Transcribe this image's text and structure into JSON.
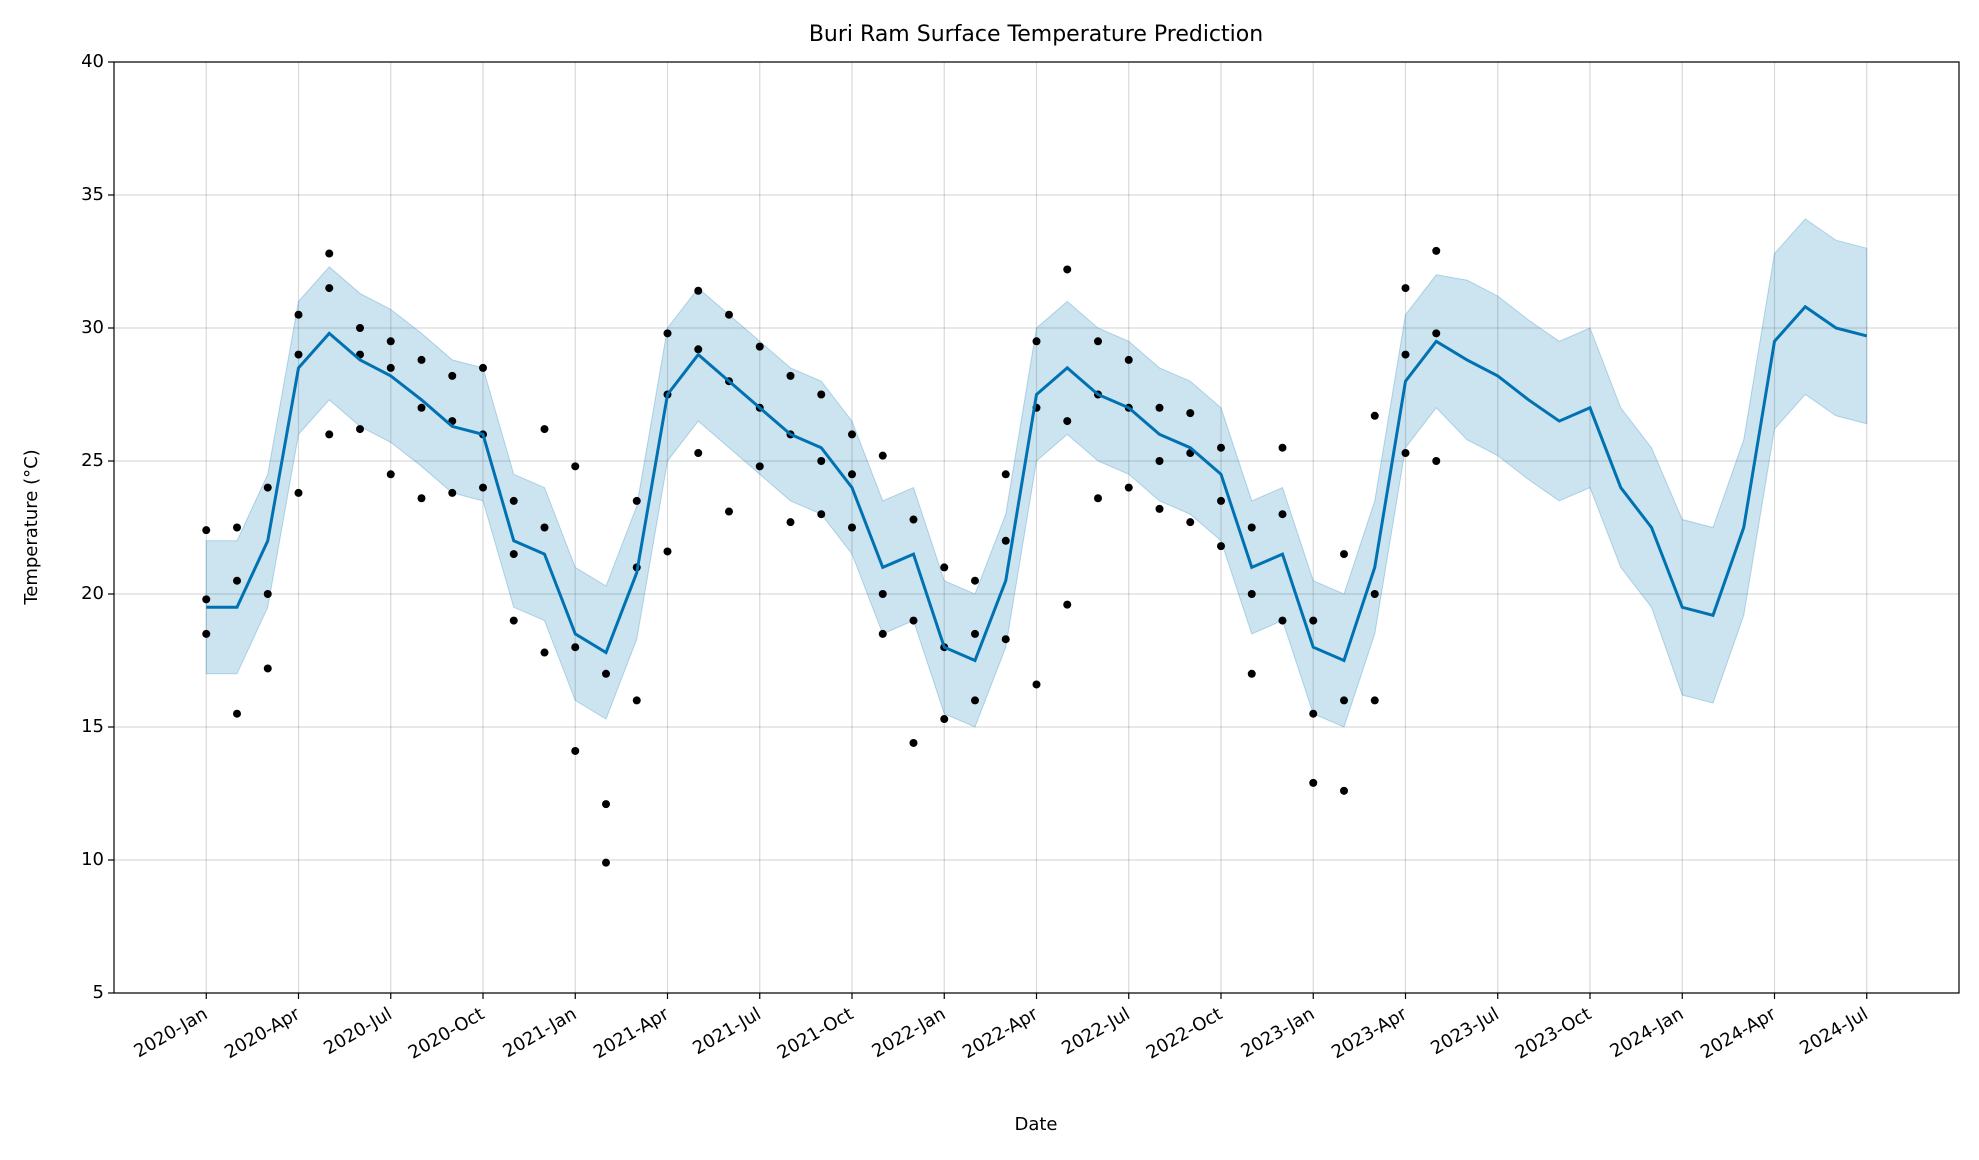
{
  "chart_data": {
    "type": "forecast",
    "title": "Buri Ram Surface Temperature Prediction",
    "x_label": "Date",
    "y_label": "Temperature (°C)",
    "xlim": [
      "2019-10",
      "2024-10"
    ],
    "ylim": [
      5,
      40
    ],
    "yticks": [
      5,
      10,
      15,
      20,
      25,
      30,
      35,
      40
    ],
    "xticks": [
      {
        "value": "2020-01",
        "label": "2020-Jan"
      },
      {
        "value": "2020-04",
        "label": "2020-Apr"
      },
      {
        "value": "2020-07",
        "label": "2020-Jul"
      },
      {
        "value": "2020-10",
        "label": "2020-Oct"
      },
      {
        "value": "2021-01",
        "label": "2021-Jan"
      },
      {
        "value": "2021-04",
        "label": "2021-Apr"
      },
      {
        "value": "2021-07",
        "label": "2021-Jul"
      },
      {
        "value": "2021-10",
        "label": "2021-Oct"
      },
      {
        "value": "2022-01",
        "label": "2022-Jan"
      },
      {
        "value": "2022-04",
        "label": "2022-Apr"
      },
      {
        "value": "2022-07",
        "label": "2022-Jul"
      },
      {
        "value": "2022-10",
        "label": "2022-Oct"
      },
      {
        "value": "2023-01",
        "label": "2023-Jan"
      },
      {
        "value": "2023-04",
        "label": "2023-Apr"
      },
      {
        "value": "2023-07",
        "label": "2023-Jul"
      },
      {
        "value": "2023-10",
        "label": "2023-Oct"
      },
      {
        "value": "2024-01",
        "label": "2024-Jan"
      },
      {
        "value": "2024-04",
        "label": "2024-Apr"
      },
      {
        "value": "2024-07",
        "label": "2024-Jul"
      }
    ],
    "grid": true,
    "line_color": "#0072b2",
    "band_color": "#0072b2",
    "point_color": "#000000",
    "x": [
      "2020-01",
      "2020-02",
      "2020-03",
      "2020-04",
      "2020-05",
      "2020-06",
      "2020-07",
      "2020-08",
      "2020-09",
      "2020-10",
      "2020-11",
      "2020-12",
      "2021-01",
      "2021-02",
      "2021-03",
      "2021-04",
      "2021-05",
      "2021-06",
      "2021-07",
      "2021-08",
      "2021-09",
      "2021-10",
      "2021-11",
      "2021-12",
      "2022-01",
      "2022-02",
      "2022-03",
      "2022-04",
      "2022-05",
      "2022-06",
      "2022-07",
      "2022-08",
      "2022-09",
      "2022-10",
      "2022-11",
      "2022-12",
      "2023-01",
      "2023-02",
      "2023-03",
      "2023-04",
      "2023-05",
      "2023-06",
      "2023-07",
      "2023-08",
      "2023-09",
      "2023-10",
      "2023-11",
      "2023-12",
      "2024-01",
      "2024-02",
      "2024-03",
      "2024-04",
      "2024-05",
      "2024-06",
      "2024-07"
    ],
    "yhat": [
      19.5,
      19.5,
      22,
      28.5,
      29.8,
      28.8,
      28.2,
      27.3,
      26.3,
      26,
      22,
      21.5,
      18.5,
      17.8,
      20.8,
      27.5,
      29,
      28,
      27,
      26,
      25.5,
      24,
      21,
      21.5,
      18,
      17.5,
      20.5,
      27.5,
      28.5,
      27.5,
      27,
      26,
      25.5,
      24.5,
      21,
      21.5,
      18,
      17.5,
      21,
      28,
      29.5,
      28.8,
      28.2,
      27.3,
      26.5,
      27,
      24,
      22.5,
      19.5,
      19.2,
      22.5,
      29.5,
      30.8,
      30,
      29.7
    ],
    "lower": [
      17,
      17,
      19.5,
      26,
      27.3,
      26.3,
      25.7,
      24.8,
      23.8,
      23.5,
      19.5,
      19,
      16,
      15.3,
      18.3,
      25,
      26.5,
      25.5,
      24.5,
      23.5,
      23,
      21.5,
      18.5,
      19,
      15.5,
      15,
      18,
      25,
      26,
      25,
      24.5,
      23.5,
      23,
      22,
      18.5,
      19,
      15.5,
      15,
      18.5,
      25.5,
      27,
      25.8,
      25.2,
      24.3,
      23.5,
      24,
      21,
      19.5,
      16.2,
      15.9,
      19.2,
      26.2,
      27.5,
      26.7,
      26.4
    ],
    "upper": [
      22,
      22,
      24.5,
      31,
      32.3,
      31.3,
      30.7,
      29.8,
      28.8,
      28.5,
      24.5,
      24,
      21,
      20.3,
      23.3,
      30,
      31.5,
      30.5,
      29.5,
      28.5,
      28,
      26.5,
      23.5,
      24,
      20.5,
      20,
      23,
      30,
      31,
      30,
      29.5,
      28.5,
      28,
      27,
      23.5,
      24,
      20.5,
      20,
      23.5,
      30.5,
      32,
      31.8,
      31.2,
      30.3,
      29.5,
      30,
      27,
      25.5,
      22.8,
      22.5,
      25.8,
      32.8,
      34.1,
      33.3,
      33
    ],
    "obs_x": [
      "2020-01",
      "2020-01",
      "2020-01",
      "2020-02",
      "2020-02",
      "2020-02",
      "2020-03",
      "2020-03",
      "2020-03",
      "2020-04",
      "2020-04",
      "2020-04",
      "2020-05",
      "2020-05",
      "2020-05",
      "2020-06",
      "2020-06",
      "2020-06",
      "2020-07",
      "2020-07",
      "2020-07",
      "2020-08",
      "2020-08",
      "2020-08",
      "2020-09",
      "2020-09",
      "2020-09",
      "2020-10",
      "2020-10",
      "2020-10",
      "2020-11",
      "2020-11",
      "2020-11",
      "2020-12",
      "2020-12",
      "2020-12",
      "2021-01",
      "2021-01",
      "2021-01",
      "2021-02",
      "2021-02",
      "2021-02",
      "2021-03",
      "2021-03",
      "2021-03",
      "2021-04",
      "2021-04",
      "2021-04",
      "2021-05",
      "2021-05",
      "2021-05",
      "2021-06",
      "2021-06",
      "2021-06",
      "2021-07",
      "2021-07",
      "2021-07",
      "2021-08",
      "2021-08",
      "2021-08",
      "2021-09",
      "2021-09",
      "2021-09",
      "2021-10",
      "2021-10",
      "2021-10",
      "2021-11",
      "2021-11",
      "2021-11",
      "2021-12",
      "2021-12",
      "2021-12",
      "2022-01",
      "2022-01",
      "2022-01",
      "2022-02",
      "2022-02",
      "2022-02",
      "2022-03",
      "2022-03",
      "2022-03",
      "2022-04",
      "2022-04",
      "2022-04",
      "2022-05",
      "2022-05",
      "2022-05",
      "2022-06",
      "2022-06",
      "2022-06",
      "2022-07",
      "2022-07",
      "2022-07",
      "2022-08",
      "2022-08",
      "2022-08",
      "2022-09",
      "2022-09",
      "2022-09",
      "2022-10",
      "2022-10",
      "2022-10",
      "2022-11",
      "2022-11",
      "2022-11",
      "2022-12",
      "2022-12",
      "2022-12",
      "2023-01",
      "2023-01",
      "2023-01",
      "2023-02",
      "2023-02",
      "2023-02",
      "2023-03",
      "2023-03",
      "2023-03",
      "2023-04",
      "2023-04",
      "2023-04",
      "2023-05",
      "2023-05",
      "2023-05"
    ],
    "obs_y": [
      22.4,
      19.8,
      18.5,
      15.5,
      20.5,
      22.5,
      17.2,
      24,
      20,
      23.8,
      29,
      30.5,
      26,
      31.5,
      32.8,
      26.2,
      29,
      30,
      24.5,
      28.5,
      29.5,
      23.6,
      27,
      28.8,
      23.8,
      26.5,
      28.2,
      24,
      26,
      28.5,
      19,
      21.5,
      23.5,
      17.8,
      22.5,
      26.2,
      14.1,
      18,
      24.8,
      9.9,
      12.1,
      17,
      16,
      21,
      23.5,
      21.6,
      27.5,
      29.8,
      25.3,
      29.2,
      31.4,
      23.1,
      28,
      30.5,
      24.8,
      27,
      29.3,
      22.7,
      26,
      28.2,
      23,
      25,
      27.5,
      22.5,
      24.5,
      26,
      18.5,
      20,
      25.2,
      14.4,
      19,
      22.8,
      15.3,
      18,
      21,
      16,
      18.5,
      20.5,
      18.3,
      22,
      24.5,
      16.6,
      27,
      29.5,
      19.6,
      26.5,
      32.2,
      23.6,
      27.5,
      29.5,
      24,
      27,
      28.8,
      23.2,
      25,
      27,
      22.7,
      25.3,
      26.8,
      21.8,
      23.5,
      25.5,
      17,
      20,
      22.5,
      19,
      23,
      25.5,
      12.9,
      15.5,
      19,
      12.6,
      16,
      21.5,
      16,
      20,
      26.7,
      25.3,
      29,
      31.5,
      25,
      29.8,
      32.9
    ]
  }
}
